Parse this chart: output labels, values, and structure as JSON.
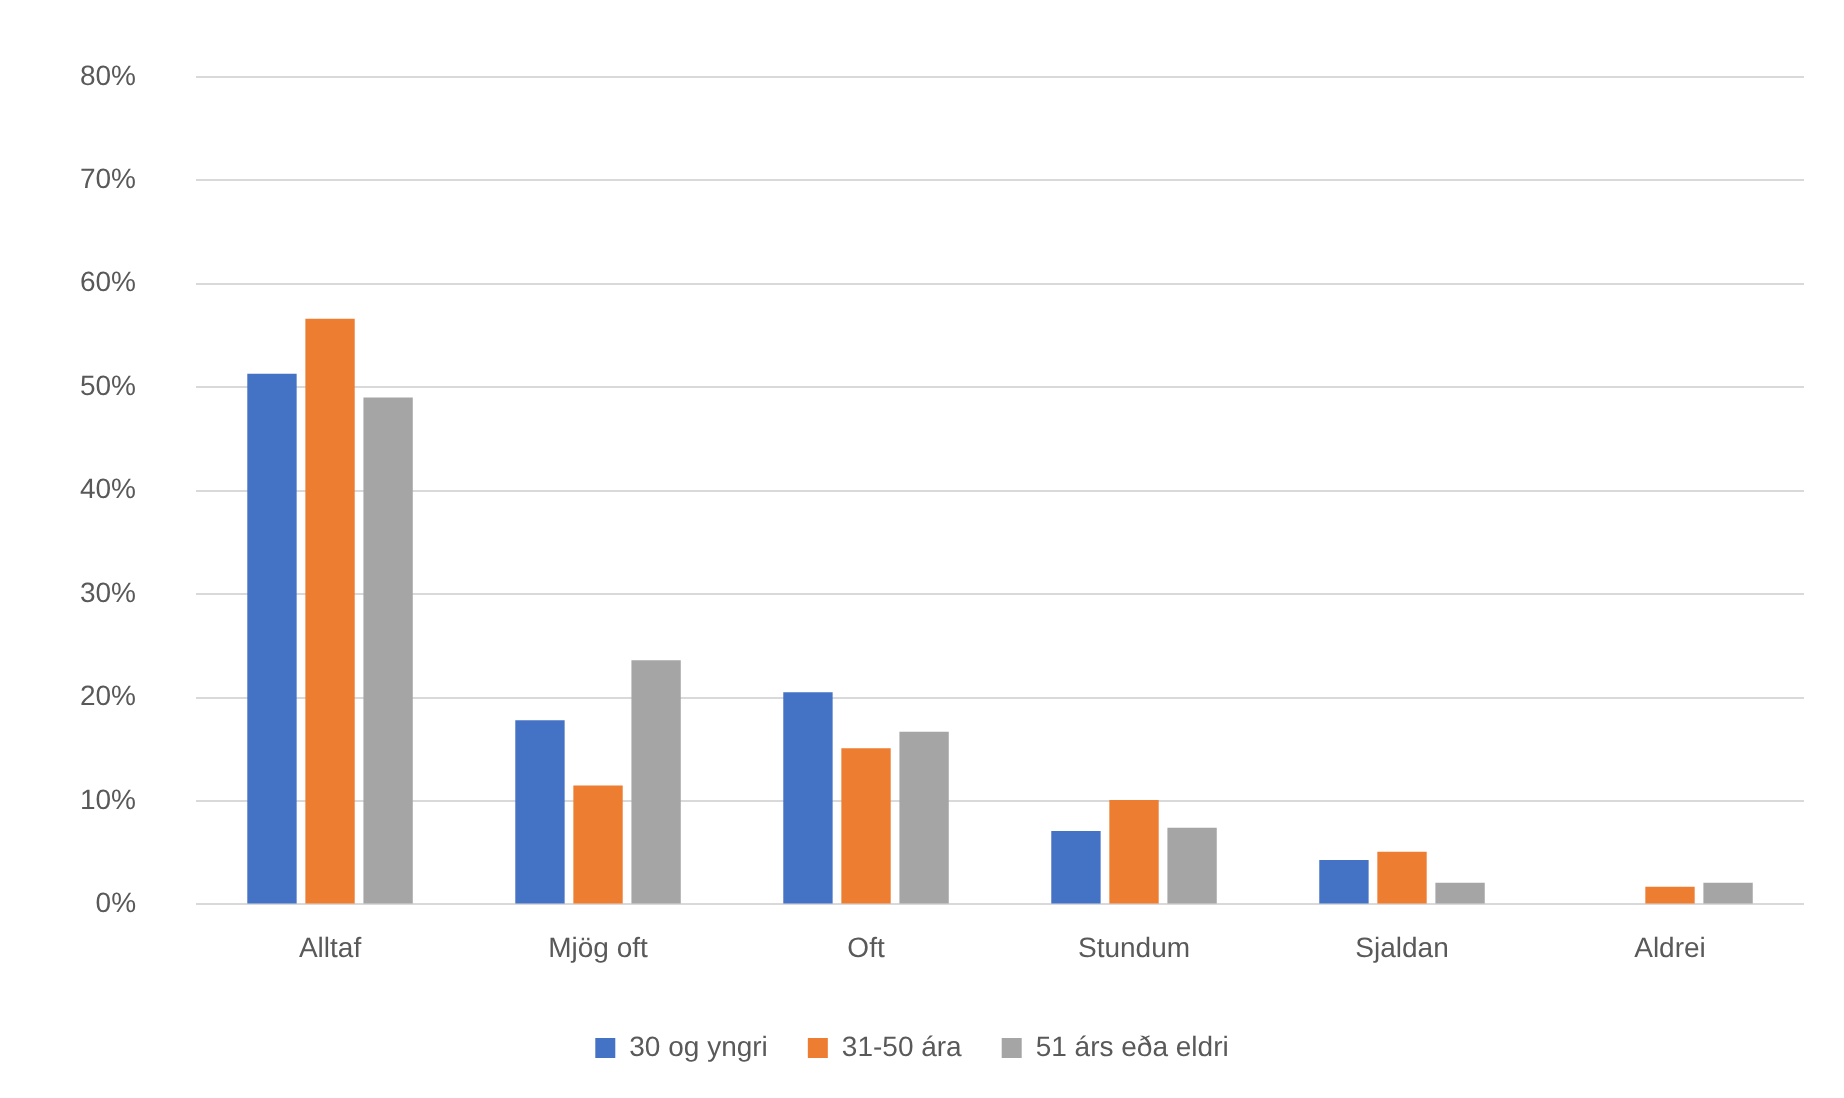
{
  "chart_data": {
    "type": "bar",
    "categories": [
      "Alltaf",
      "Mjög oft",
      "Oft",
      "Stundum",
      "Sjaldan",
      "Aldrei"
    ],
    "series": [
      {
        "name": "30 og yngri",
        "color": "#4472c4",
        "values": [
          51.3,
          17.8,
          20.5,
          7.1,
          4.3,
          0
        ]
      },
      {
        "name": "31-50 ára",
        "color": "#ed7d31",
        "values": [
          56.6,
          11.5,
          15.1,
          10.1,
          5.1,
          1.7
        ]
      },
      {
        "name": "51 árs eða eldri",
        "color": "#a5a5a5",
        "values": [
          49.0,
          23.6,
          16.7,
          7.4,
          2.1,
          2.1
        ]
      }
    ],
    "ylim": [
      0,
      80
    ],
    "yticks": [
      {
        "value": 0,
        "label": "0%"
      },
      {
        "value": 10,
        "label": "10%"
      },
      {
        "value": 20,
        "label": "20%"
      },
      {
        "value": 30,
        "label": "30%"
      },
      {
        "value": 40,
        "label": "40%"
      },
      {
        "value": 50,
        "label": "50%"
      },
      {
        "value": 60,
        "label": "60%"
      },
      {
        "value": 70,
        "label": "70%"
      },
      {
        "value": 80,
        "label": "80%"
      }
    ],
    "grid": "y",
    "legend": "bottom"
  }
}
